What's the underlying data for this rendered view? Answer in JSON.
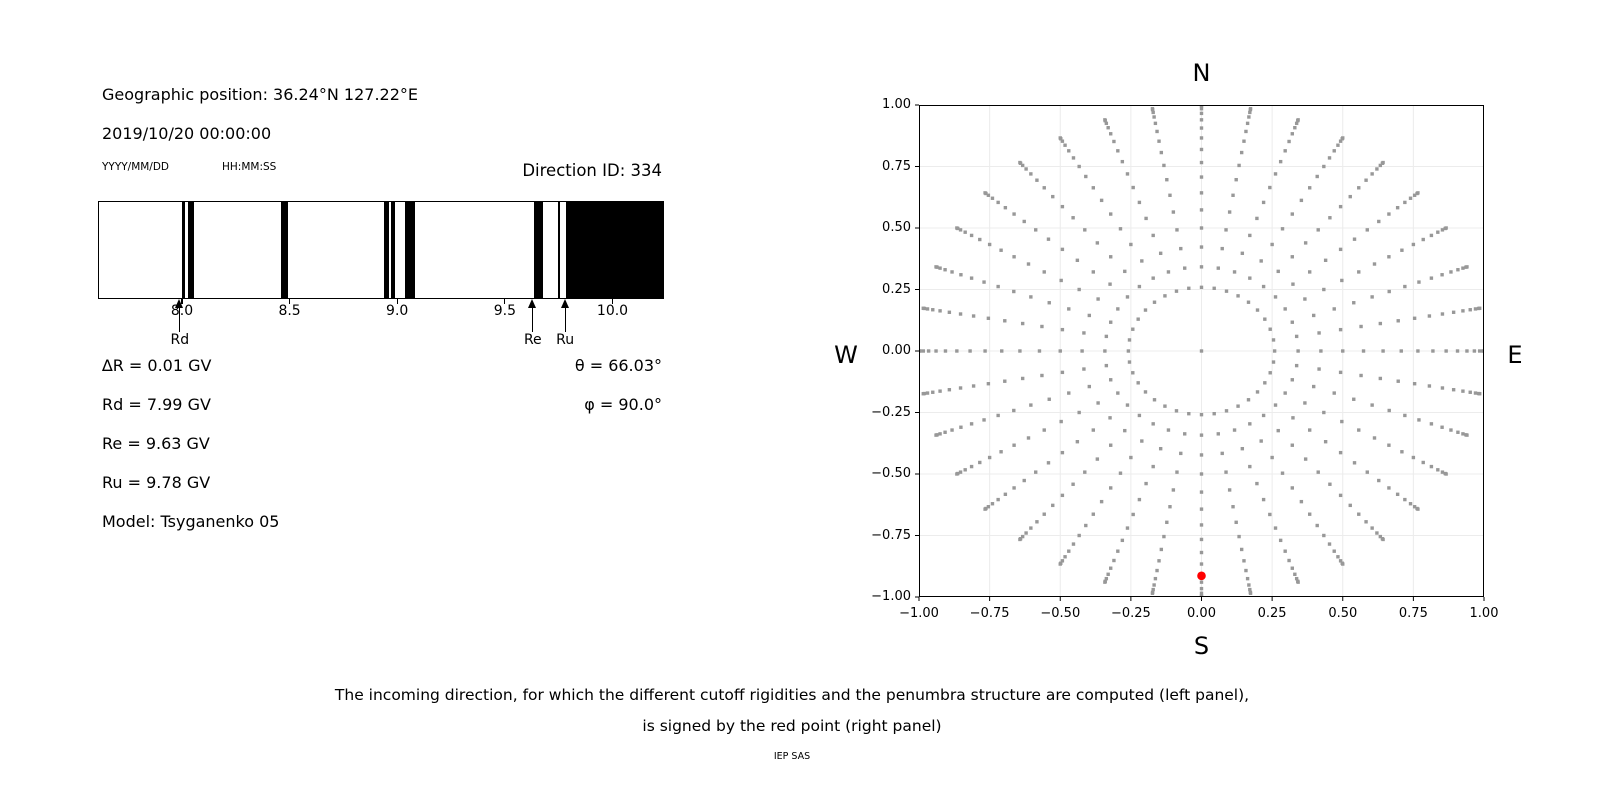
{
  "header": {
    "geo_position": "Geographic position: 36.24°N 127.22°E",
    "datetime": "2019/10/20 00:00:00",
    "date_format_label": "YYYY/MM/DD",
    "time_format_label": "HH:MM:SS"
  },
  "left_panel": {
    "title": "Direction ID: 334",
    "results_left": [
      "∆R = 0.01 GV",
      "Rd = 7.99 GV",
      "Re = 9.63 GV",
      "Ru = 9.78 GV",
      "Model: Tsyganenko 05"
    ],
    "results_right": [
      "θ = 66.03°",
      "φ = 90.0°"
    ]
  },
  "right_panel": {
    "compass": {
      "top": "N",
      "bottom": "S",
      "left": "W",
      "right": "E"
    }
  },
  "caption": {
    "line1": "The incoming direction, for which the different cutoff rigidities and the penumbra structure are computed (left panel),",
    "line2": "is signed by the red point (right panel)",
    "credit": "IEP SAS"
  },
  "chart_data": [
    {
      "type": "bar",
      "name": "penumbra-structure",
      "title": "Direction ID: 334",
      "xlabel": "",
      "xlim": [
        7.61,
        10.23
      ],
      "xticks": [
        8.0,
        8.5,
        9.0,
        9.5,
        10.0
      ],
      "xtick_labels": [
        "8.0",
        "8.5",
        "9.0",
        "9.5",
        "10.0"
      ],
      "bar_color": "#000000",
      "forbidden_bands_gv": [
        [
          7.994,
          8.009
        ],
        [
          8.024,
          8.052
        ],
        [
          8.455,
          8.487
        ],
        [
          8.933,
          8.956
        ],
        [
          8.968,
          8.984
        ],
        [
          9.033,
          9.079
        ],
        [
          9.63,
          9.672
        ],
        [
          9.74,
          9.753
        ],
        [
          9.78,
          10.23
        ]
      ],
      "arrows": [
        {
          "label": "Rd",
          "value_gv": 7.99
        },
        {
          "label": "Re",
          "value_gv": 9.63
        },
        {
          "label": "Ru",
          "value_gv": 9.78
        }
      ]
    },
    {
      "type": "scatter",
      "name": "incoming-direction-grid",
      "xlim": [
        -1,
        1
      ],
      "ylim": [
        -1,
        1
      ],
      "xticks": [
        -1,
        -0.75,
        -0.5,
        -0.25,
        0,
        0.25,
        0.5,
        0.75,
        1
      ],
      "xtick_labels": [
        "−1.00",
        "−0.75",
        "−0.50",
        "−0.25",
        "0.00",
        "0.25",
        "0.50",
        "0.75",
        "1.00"
      ],
      "yticks": [
        1,
        0.75,
        0.5,
        0.25,
        0,
        -0.25,
        -0.5,
        -0.75,
        -1
      ],
      "ytick_labels": [
        "1.00",
        "0.75",
        "0.50",
        "0.25",
        "0.00",
        "−0.25",
        "−0.50",
        "−0.75",
        "−1.00"
      ],
      "grid": true,
      "grid_color": "#ececec",
      "dot_color": "#989898",
      "direction_grid": {
        "azimuth_deg_start": 0,
        "azimuth_deg_step": 10,
        "azimuth_count": 36,
        "zenith_deg_min": 15,
        "zenith_deg_max": 90,
        "zenith_deg_step": 5,
        "center_dot": true,
        "radius_mapping": "sin(zenith)"
      },
      "red_point": {
        "x": 0.0,
        "y": -0.914,
        "zenith_deg": 66.03,
        "azimuth_deg": 90.0,
        "color": "#ff0000"
      }
    }
  ]
}
